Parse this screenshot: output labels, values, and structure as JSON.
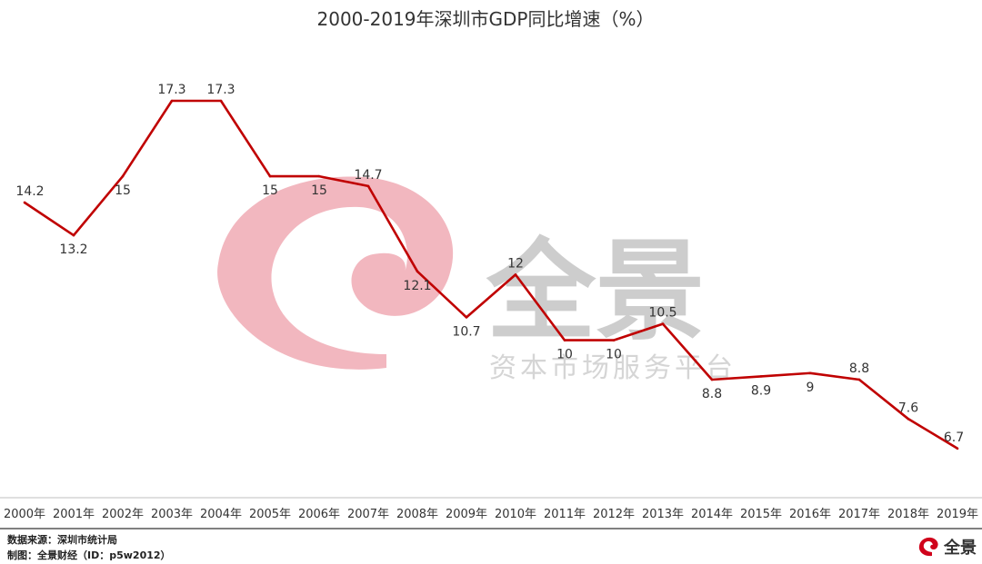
{
  "chart_data": {
    "type": "line",
    "title": "2000-2019年深圳市GDP同比增速（%）",
    "xlabel": "",
    "ylabel": "",
    "categories": [
      "2000年",
      "2001年",
      "2002年",
      "2003年",
      "2004年",
      "2005年",
      "2006年",
      "2007年",
      "2008年",
      "2009年",
      "2010年",
      "2011年",
      "2012年",
      "2013年",
      "2014年",
      "2015年",
      "2016年",
      "2017年",
      "2018年",
      "2019年"
    ],
    "series": [
      {
        "values": [
          14.2,
          13.2,
          15,
          17.3,
          17.3,
          15,
          15,
          14.7,
          12.1,
          10.7,
          12,
          10,
          10,
          10.5,
          8.8,
          8.9,
          9,
          8.8,
          7.6,
          6.7
        ]
      }
    ],
    "labels": [
      "14.2",
      "13.2",
      "15",
      "17.3",
      "17.3",
      "15",
      "15",
      "14.7",
      "12.1",
      "10.7",
      "12",
      "10",
      "10",
      "10.5",
      "8.8",
      "8.9",
      "9",
      "8.8",
      "7.6",
      "6.7"
    ],
    "label_side": [
      "above",
      "below",
      "below",
      "above",
      "above",
      "below",
      "below",
      "above",
      "below",
      "below",
      "above",
      "below",
      "below",
      "above",
      "below",
      "below",
      "below",
      "above",
      "above",
      "above"
    ],
    "ylim": [
      5.2,
      17.3
    ],
    "grid": false,
    "legend": "none",
    "line_color": "#c00000"
  },
  "watermark": {
    "brand": "全景",
    "tagline": "资本市场服务平台",
    "color": "#f2b7bf"
  },
  "footer": {
    "source": "数据来源：深圳市统计局",
    "credit": "制图：全景财经（ID：p5w2012）"
  },
  "logo": {
    "icon": "quanjing-logo-icon",
    "text": "全景"
  }
}
